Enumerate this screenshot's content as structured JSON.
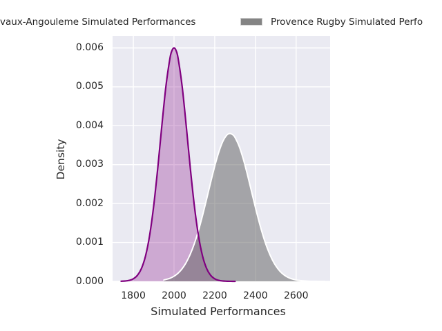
{
  "figure": {
    "background": "#ffffff",
    "plot_background": "#eaeaf2",
    "grid_color": "#ffffff",
    "text_color": "#262626"
  },
  "legend": {
    "position": "top",
    "items": [
      {
        "label": "vaux-Angouleme Simulated Performances",
        "swatch_visible": false,
        "swatch_color": "#800080"
      },
      {
        "label": "Provence Rugby Simulated Perfo",
        "swatch_visible": true,
        "swatch_color": "#848484"
      }
    ]
  },
  "chart_data": {
    "type": "area",
    "subtype": "kde-density",
    "title": "",
    "xlabel": "Simulated Performances",
    "ylabel": "Density",
    "xlim": [
      1698,
      2767
    ],
    "ylim": [
      0,
      0.00631
    ],
    "x_ticks": [
      1800,
      2000,
      2200,
      2400,
      2600
    ],
    "y_ticks": [
      0.0,
      0.001,
      0.002,
      0.003,
      0.004,
      0.005,
      0.006
    ],
    "grid": true,
    "legend_position": "top",
    "series": [
      {
        "name": "vaux-Angouleme Simulated Performances",
        "line_color": "#800080",
        "line_width": 2.2,
        "fill_color": "rgba(128,0,128,0.28)",
        "peak": {
          "x": 2000,
          "density": 0.006
        },
        "est_mean": 2000,
        "est_sd": 66.5,
        "points": [
          [
            1740,
            2.9e-06
          ],
          [
            1760,
            8.9e-06
          ],
          [
            1780,
            2.52e-05
          ],
          [
            1800,
            6.51e-05
          ],
          [
            1820,
            0.0001539
          ],
          [
            1840,
            0.0003319
          ],
          [
            1860,
            0.000654
          ],
          [
            1880,
            0.001178
          ],
          [
            1900,
            0.001937
          ],
          [
            1920,
            0.00291
          ],
          [
            1940,
            0.003994
          ],
          [
            1960,
            0.005007
          ],
          [
            1980,
            0.005735
          ],
          [
            1990,
            0.005933
          ],
          [
            2000,
            0.006
          ],
          [
            2010,
            0.005933
          ],
          [
            2020,
            0.005735
          ],
          [
            2040,
            0.005007
          ],
          [
            2060,
            0.003994
          ],
          [
            2080,
            0.00291
          ],
          [
            2100,
            0.001937
          ],
          [
            2120,
            0.001178
          ],
          [
            2140,
            0.000654
          ],
          [
            2160,
            0.0003319
          ],
          [
            2180,
            0.0001539
          ],
          [
            2200,
            6.51e-05
          ],
          [
            2220,
            2.52e-05
          ],
          [
            2240,
            8.9e-06
          ],
          [
            2260,
            2.9e-06
          ],
          [
            2280,
            9e-07
          ],
          [
            2300,
            2e-07
          ]
        ]
      },
      {
        "name": "Provence Rugby Simulated Perfo",
        "line_color": "#ffffff",
        "line_width": 2,
        "fill_color": "rgba(100,100,100,0.52)",
        "peak": {
          "x": 2275,
          "density": 0.0038
        },
        "est_mean": 2275,
        "est_sd": 106,
        "points": [
          [
            1950,
            3.46e-05
          ],
          [
            1980,
            7.9e-05
          ],
          [
            2000,
            0.0001315
          ],
          [
            2020,
            0.0002101
          ],
          [
            2040,
            0.0003257
          ],
          [
            2060,
            0.0004856
          ],
          [
            2080,
            0.0006996
          ],
          [
            2100,
            0.0009724
          ],
          [
            2120,
            0.0013049
          ],
          [
            2140,
            0.0016888
          ],
          [
            2160,
            0.0021098
          ],
          [
            2180,
            0.0025434
          ],
          [
            2200,
            0.0029587
          ],
          [
            2220,
            0.0033216
          ],
          [
            2240,
            0.0035986
          ],
          [
            2260,
            0.0037623
          ],
          [
            2275,
            0.0038
          ],
          [
            2290,
            0.0037623
          ],
          [
            2300,
            0.003696
          ],
          [
            2320,
            0.0034725
          ],
          [
            2340,
            0.0031487
          ],
          [
            2360,
            0.0027554
          ],
          [
            2380,
            0.0023267
          ],
          [
            2400,
            0.0018958
          ],
          [
            2420,
            0.0014911
          ],
          [
            2440,
            0.0011316
          ],
          [
            2460,
            0.0008286
          ],
          [
            2480,
            0.0005856
          ],
          [
            2500,
            0.0003994
          ],
          [
            2520,
            0.0002614
          ],
          [
            2540,
            0.0001668
          ],
          [
            2560,
            0.0001022
          ],
          [
            2580,
            6.04e-05
          ],
          [
            2600,
            3.46e-05
          ],
          [
            2620,
            1.91e-05
          ],
          [
            2640,
            1.02e-05
          ],
          [
            2660,
            5.3e-06
          ],
          [
            2680,
            2.6e-06
          ],
          [
            2700,
            1.3e-06
          ],
          [
            2720,
            6e-07
          ],
          [
            2740,
            3e-07
          ]
        ]
      }
    ]
  }
}
